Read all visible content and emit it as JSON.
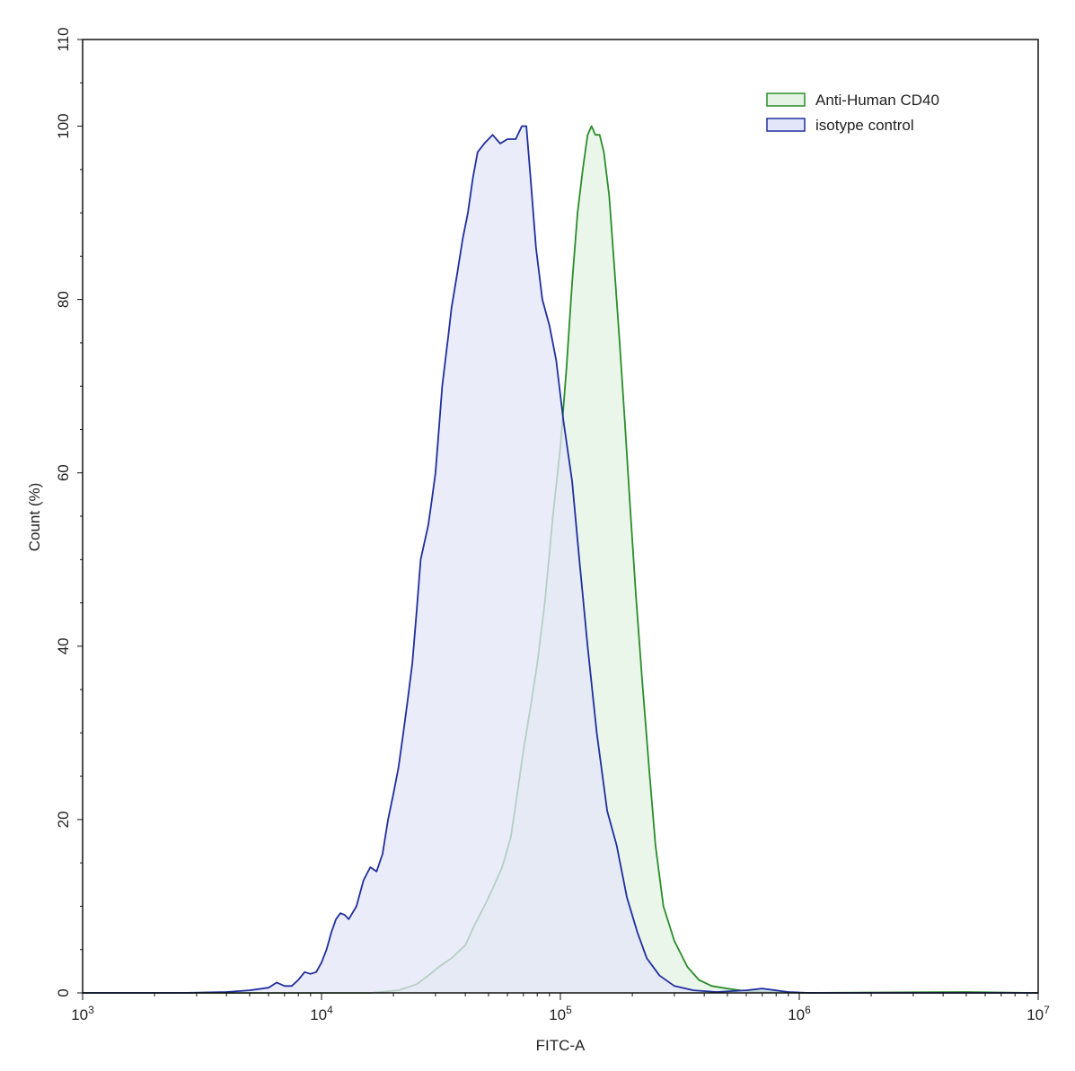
{
  "chart_data": {
    "type": "area",
    "xlabel": "FITC-A",
    "ylabel": "Count  (%)",
    "x_scale": "log10",
    "xlim": [
      1000,
      10000000
    ],
    "ylim": [
      0,
      110
    ],
    "x_ticks": [
      {
        "value": 1000,
        "base": "10",
        "exp": "3"
      },
      {
        "value": 10000,
        "base": "10",
        "exp": "4"
      },
      {
        "value": 100000,
        "base": "10",
        "exp": "5"
      },
      {
        "value": 1000000,
        "base": "10",
        "exp": "6"
      },
      {
        "value": 10000000,
        "base": "10",
        "exp": "7"
      }
    ],
    "y_ticks": [
      0,
      20,
      40,
      60,
      80,
      100,
      110
    ],
    "grid": false,
    "legend_position": "top-right",
    "series": [
      {
        "name": "Anti-Human CD40",
        "stroke": "#2a8c2a",
        "fill": "#e4f3e4",
        "points": [
          [
            1000,
            0
          ],
          [
            16000,
            0
          ],
          [
            21000,
            0.3
          ],
          [
            25000,
            1
          ],
          [
            28000,
            2
          ],
          [
            31000,
            3
          ],
          [
            35000,
            4
          ],
          [
            40000,
            5.5
          ],
          [
            44000,
            8
          ],
          [
            48000,
            10
          ],
          [
            52000,
            12
          ],
          [
            57000,
            14.5
          ],
          [
            62000,
            18
          ],
          [
            66000,
            23
          ],
          [
            70000,
            28
          ],
          [
            75000,
            33
          ],
          [
            80000,
            38
          ],
          [
            86000,
            45
          ],
          [
            93000,
            55
          ],
          [
            100000,
            63
          ],
          [
            106000,
            72
          ],
          [
            112000,
            82
          ],
          [
            118000,
            90
          ],
          [
            124000,
            95
          ],
          [
            130000,
            99
          ],
          [
            135000,
            100
          ],
          [
            140000,
            99
          ],
          [
            146000,
            99
          ],
          [
            152000,
            97
          ],
          [
            160000,
            92
          ],
          [
            168000,
            84
          ],
          [
            177000,
            75
          ],
          [
            186000,
            66
          ],
          [
            196000,
            56
          ],
          [
            207000,
            46
          ],
          [
            220000,
            36
          ],
          [
            235000,
            26
          ],
          [
            250000,
            17
          ],
          [
            270000,
            10
          ],
          [
            300000,
            6
          ],
          [
            340000,
            3
          ],
          [
            380000,
            1.5
          ],
          [
            430000,
            0.8
          ],
          [
            500000,
            0.5
          ],
          [
            600000,
            0.2
          ],
          [
            800000,
            0.1
          ],
          [
            1000000,
            0
          ],
          [
            5000000,
            0.1
          ],
          [
            10000000,
            0
          ]
        ]
      },
      {
        "name": "isotype control",
        "stroke": "#1f2e9e",
        "fill": "#e3e5f8",
        "points": [
          [
            1000,
            0
          ],
          [
            2600,
            0
          ],
          [
            4000,
            0.1
          ],
          [
            5000,
            0.3
          ],
          [
            6000,
            0.6
          ],
          [
            6500,
            1.2
          ],
          [
            7000,
            0.8
          ],
          [
            7500,
            0.8
          ],
          [
            8000,
            1.5
          ],
          [
            8500,
            2.4
          ],
          [
            9000,
            2.2
          ],
          [
            9500,
            2.4
          ],
          [
            10000,
            3.5
          ],
          [
            10500,
            5
          ],
          [
            11000,
            7
          ],
          [
            11500,
            8.5
          ],
          [
            12000,
            9.2
          ],
          [
            12500,
            9
          ],
          [
            13000,
            8.5
          ],
          [
            14000,
            10
          ],
          [
            15000,
            13
          ],
          [
            16000,
            14.5
          ],
          [
            17000,
            14
          ],
          [
            18000,
            16
          ],
          [
            19000,
            20
          ],
          [
            20000,
            23
          ],
          [
            21000,
            26
          ],
          [
            22000,
            30
          ],
          [
            23000,
            34
          ],
          [
            24000,
            38
          ],
          [
            25000,
            44
          ],
          [
            26000,
            50
          ],
          [
            28000,
            54
          ],
          [
            29000,
            57
          ],
          [
            30000,
            60
          ],
          [
            31000,
            65
          ],
          [
            32000,
            70
          ],
          [
            33000,
            73
          ],
          [
            34000,
            76
          ],
          [
            35000,
            79
          ],
          [
            37000,
            83
          ],
          [
            39000,
            87
          ],
          [
            41000,
            90
          ],
          [
            43000,
            94
          ],
          [
            45000,
            97
          ],
          [
            48000,
            98
          ],
          [
            52000,
            99
          ],
          [
            56000,
            98
          ],
          [
            60000,
            98.5
          ],
          [
            65000,
            98.5
          ],
          [
            69000,
            100
          ],
          [
            72000,
            100
          ],
          [
            75000,
            94
          ],
          [
            79000,
            86
          ],
          [
            84000,
            80
          ],
          [
            90000,
            77
          ],
          [
            96000,
            73
          ],
          [
            103000,
            66
          ],
          [
            112000,
            59
          ],
          [
            120000,
            50
          ],
          [
            130000,
            40
          ],
          [
            142000,
            30
          ],
          [
            157000,
            21
          ],
          [
            172000,
            17
          ],
          [
            190000,
            11
          ],
          [
            210000,
            7
          ],
          [
            230000,
            4
          ],
          [
            260000,
            2
          ],
          [
            300000,
            0.8
          ],
          [
            360000,
            0.3
          ],
          [
            450000,
            0.1
          ],
          [
            600000,
            0.3
          ],
          [
            700000,
            0.5
          ],
          [
            900000,
            0.1
          ],
          [
            1100000,
            0
          ],
          [
            10000000,
            0
          ]
        ]
      }
    ]
  }
}
